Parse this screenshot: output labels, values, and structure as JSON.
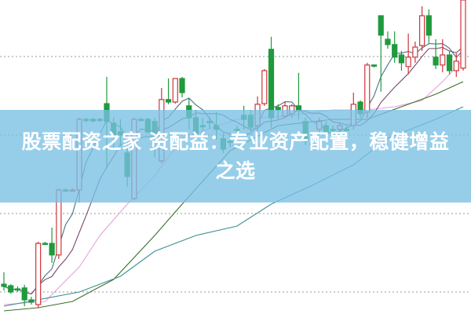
{
  "title": "股票配资之家 资配益：专业资产配置，稳健增益之选",
  "chart_data": {
    "type": "candlestick",
    "title": "股票配资之家 资配益：专业资产配置，稳健增益之选",
    "ylim": [
      10,
      20
    ],
    "grid": true,
    "grid_levels": [
      18.2,
      15.7,
      13.2,
      10.7
    ],
    "colors": {
      "up": "#d0343a",
      "down": "#1f9a3c",
      "ma5": "#4a6f86",
      "ma10": "#7b4a6a",
      "ma_pink": "#e6a2dc",
      "ma_green": "#3f6f2c",
      "ma_teal": "#3a8f94",
      "grid": "#9a9a9a",
      "banner": "#78c0e4"
    },
    "candles": [
      [
        10.95,
        10.88,
        11.33,
        10.75
      ],
      [
        10.9,
        10.7,
        10.95,
        10.65
      ],
      [
        10.8,
        10.78,
        10.88,
        10.7
      ],
      [
        10.83,
        10.45,
        10.93,
        10.25
      ],
      [
        10.45,
        10.38,
        10.55,
        10.3
      ],
      [
        10.3,
        12.25,
        12.3,
        10.2
      ],
      [
        12.25,
        12.23,
        12.3,
        12.2
      ],
      [
        12.25,
        11.88,
        12.75,
        11.63
      ],
      [
        11.88,
        13.95,
        14.0,
        11.75
      ],
      [
        13.95,
        13.93,
        14.0,
        13.9
      ],
      [
        13.95,
        13.95,
        14.0,
        13.9
      ],
      [
        13.95,
        16.2,
        16.25,
        13.55
      ],
      [
        16.2,
        16.18,
        16.25,
        16.1
      ],
      [
        16.2,
        16.15,
        16.25,
        16.1
      ],
      [
        16.2,
        16.18,
        16.25,
        16.12
      ],
      [
        16.7,
        16.13,
        17.55,
        14.63
      ],
      [
        16.08,
        15.63,
        16.25,
        15.25
      ],
      [
        15.8,
        15.7,
        16.2,
        15.25
      ],
      [
        15.13,
        14.38,
        15.75,
        14.05
      ],
      [
        13.68,
        16.2,
        16.25,
        13.63
      ],
      [
        16.2,
        16.18,
        16.25,
        16.15
      ],
      [
        16.2,
        15.8,
        16.25,
        15.75
      ],
      [
        16.13,
        15.75,
        16.25,
        15.0
      ],
      [
        14.88,
        16.83,
        17.2,
        14.8
      ],
      [
        16.83,
        16.75,
        17.5,
        16.68
      ],
      [
        16.75,
        17.5,
        17.5,
        16.7
      ],
      [
        17.5,
        17.05,
        17.55,
        16.9
      ],
      [
        16.63,
        16.25,
        16.88,
        15.88
      ],
      [
        16.25,
        15.75,
        16.5,
        15.63
      ],
      [
        16.0,
        15.98,
        16.25,
        15.75
      ],
      [
        16.13,
        16.1,
        16.3,
        15.9
      ],
      [
        16.0,
        15.88,
        16.43,
        15.55
      ],
      [
        15.58,
        15.25,
        15.75,
        15.13
      ],
      [
        15.5,
        15.48,
        15.7,
        15.3
      ],
      [
        15.88,
        15.85,
        16.0,
        15.7
      ],
      [
        16.33,
        16.2,
        16.63,
        15.88
      ],
      [
        16.33,
        15.95,
        16.5,
        15.8
      ],
      [
        16.0,
        16.68,
        16.93,
        15.75
      ],
      [
        16.7,
        17.75,
        17.8,
        16.63
      ],
      [
        18.43,
        16.25,
        18.83,
        15.93
      ],
      [
        16.58,
        16.5,
        16.68,
        16.2
      ],
      [
        16.3,
        16.63,
        16.75,
        16.25
      ],
      [
        16.38,
        16.63,
        16.68,
        16.25
      ],
      [
        16.63,
        16.5,
        17.68,
        16.2
      ],
      [
        16.13,
        15.5,
        16.25,
        15.38
      ],
      [
        15.43,
        15.4,
        15.5,
        15.35
      ],
      [
        15.88,
        16.13,
        16.25,
        15.75
      ],
      [
        16.0,
        15.75,
        16.13,
        15.63
      ],
      [
        15.88,
        15.85,
        16.0,
        15.75
      ],
      [
        15.88,
        16.0,
        16.1,
        15.8
      ],
      [
        15.88,
        15.86,
        16.0,
        15.8
      ],
      [
        16.0,
        16.68,
        17.05,
        15.88
      ],
      [
        16.75,
        16.38,
        16.8,
        16.25
      ],
      [
        16.43,
        17.93,
        18.0,
        16.25
      ],
      [
        17.93,
        17.9,
        17.95,
        17.85
      ],
      [
        19.5,
        18.88,
        19.5,
        17.08
      ],
      [
        18.75,
        18.58,
        19.0,
        18.45
      ],
      [
        18.58,
        18.18,
        19.0,
        18.0
      ],
      [
        18.25,
        18.0,
        18.38,
        17.75
      ],
      [
        17.88,
        18.18,
        18.93,
        17.63
      ],
      [
        18.18,
        18.5,
        18.68,
        18.0
      ],
      [
        18.55,
        19.5,
        19.8,
        18.38
      ],
      [
        19.5,
        18.88,
        19.7,
        18.63
      ],
      [
        18.18,
        17.93,
        18.75,
        17.8
      ],
      [
        17.93,
        18.25,
        18.75,
        17.7
      ],
      [
        18.25,
        17.75,
        18.38,
        17.63
      ],
      [
        17.75,
        18.05,
        18.3,
        17.55
      ],
      [
        17.83,
        20.0,
        20.0,
        17.75
      ]
    ],
    "candle_fields": [
      "open",
      "close",
      "high",
      "low"
    ],
    "moving_averages": [
      {
        "key": "ma_pink",
        "points": [
          [
            0,
            10.3
          ],
          [
            6,
            10.4
          ],
          [
            11,
            11.5
          ],
          [
            14,
            12.5
          ],
          [
            18,
            13.5
          ],
          [
            22,
            14.4
          ],
          [
            26,
            15.6
          ],
          [
            34,
            16.2
          ],
          [
            41,
            16.3
          ],
          [
            48,
            16.5
          ],
          [
            53,
            16.5
          ],
          [
            57,
            16.6
          ],
          [
            61,
            16.8
          ],
          [
            64,
            17.4
          ],
          [
            67,
            18.1
          ]
        ]
      },
      {
        "key": "ma_green",
        "points": [
          [
            0,
            10.1
          ],
          [
            5,
            10.2
          ],
          [
            10,
            10.4
          ],
          [
            16,
            11.1
          ],
          [
            22,
            12.5
          ],
          [
            26,
            13.5
          ],
          [
            33,
            15.2
          ],
          [
            40,
            16.0
          ],
          [
            48,
            16.2
          ],
          [
            53,
            16.2
          ],
          [
            58,
            16.6
          ],
          [
            63,
            17.0
          ],
          [
            67,
            17.4
          ]
        ]
      },
      {
        "key": "ma_teal",
        "points": [
          [
            0,
            10.25
          ],
          [
            11,
            10.7
          ],
          [
            17,
            11.2
          ],
          [
            22,
            12.0
          ],
          [
            28,
            12.5
          ],
          [
            34,
            12.8
          ],
          [
            39,
            13.5
          ],
          [
            45,
            14.1
          ],
          [
            51,
            14.75
          ],
          [
            56,
            15.6
          ],
          [
            63,
            16.2
          ],
          [
            67,
            16.6
          ]
        ]
      }
    ]
  }
}
